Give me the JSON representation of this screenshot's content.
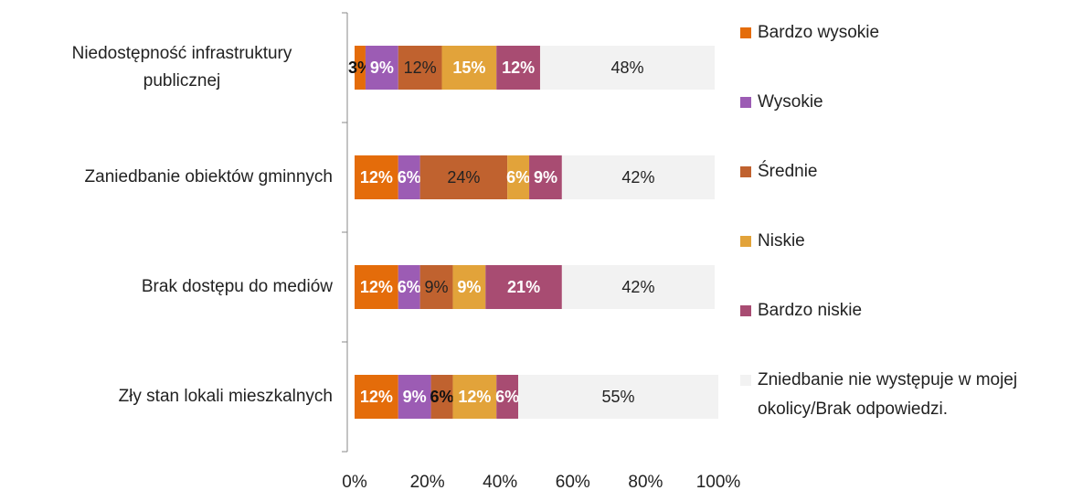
{
  "chart_data": {
    "type": "bar",
    "orientation": "horizontal",
    "stacked": true,
    "categories": [
      "Niedostępność infrastruktury publicznej",
      "Zaniedbanie obiektów gminnych",
      "Brak dostępu do mediów",
      "Zły stan lokali mieszkalnych"
    ],
    "series": [
      {
        "name": "Bardzo wysokie",
        "color": "#e46c0a",
        "values": [
          3,
          12,
          12,
          12
        ],
        "value_labels": [
          "3%",
          "12%",
          "12%",
          "12%"
        ]
      },
      {
        "name": "Wysokie",
        "color": "#9c5cb4",
        "values": [
          9,
          6,
          6,
          9
        ],
        "value_labels": [
          "9%",
          "6%",
          "6%",
          "9%"
        ]
      },
      {
        "name": "Średnie",
        "color": "#c0622f",
        "values": [
          12,
          24,
          9,
          6
        ],
        "value_labels": [
          "12%",
          "24%",
          "9%",
          "6%"
        ]
      },
      {
        "name": "Niskie",
        "color": "#e2a33a",
        "values": [
          15,
          6,
          9,
          12
        ],
        "value_labels": [
          "15%",
          "6%",
          "9%",
          "12%"
        ]
      },
      {
        "name": "Bardzo niskie",
        "color": "#a84c72",
        "values": [
          12,
          9,
          21,
          6
        ],
        "value_labels": [
          "12%",
          "9%",
          "21%",
          "6%"
        ]
      },
      {
        "name": "Zniedbanie nie występuje w mojej okolicy/Brak odpowiedzi.",
        "color": "#f2f2f2",
        "values": [
          48,
          42,
          42,
          55
        ],
        "value_labels": [
          "48%",
          "42%",
          "42%",
          "55%"
        ]
      }
    ],
    "xlim": [
      0,
      100
    ],
    "xticks": [
      {
        "value": 0,
        "label": "0%"
      },
      {
        "value": 20,
        "label": "20%"
      },
      {
        "value": 40,
        "label": "40%"
      },
      {
        "value": 60,
        "label": "60%"
      },
      {
        "value": 80,
        "label": "80%"
      },
      {
        "value": 100,
        "label": "100%"
      }
    ],
    "legend": "right"
  }
}
